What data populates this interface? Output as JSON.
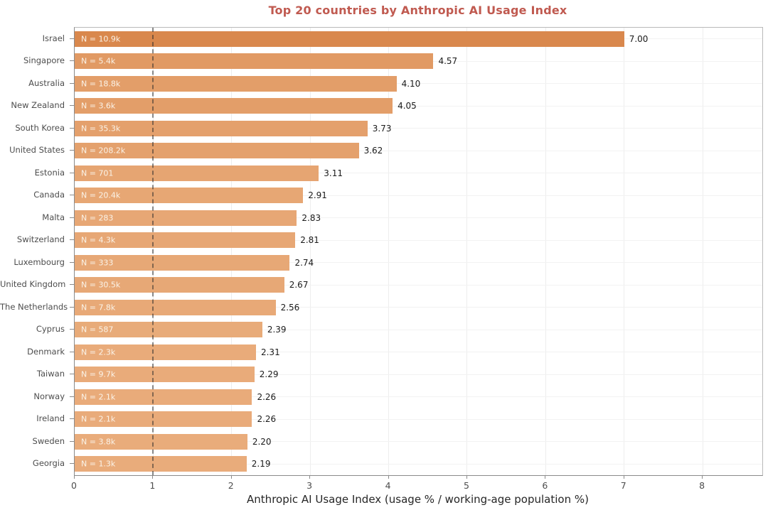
{
  "chart_data": {
    "type": "bar",
    "orientation": "horizontal",
    "title": "Top 20 countries by Anthropic AI Usage Index",
    "xlabel": "Anthropic AI Usage Index (usage % / working-age population %)",
    "categories": [
      "Israel",
      "Singapore",
      "Australia",
      "New Zealand",
      "South Korea",
      "United States",
      "Estonia",
      "Canada",
      "Malta",
      "Switzerland",
      "Luxembourg",
      "United Kingdom",
      "The Netherlands",
      "Cyprus",
      "Denmark",
      "Taiwan",
      "Norway",
      "Ireland",
      "Sweden",
      "Georgia"
    ],
    "values": [
      7.0,
      4.57,
      4.1,
      4.05,
      3.73,
      3.62,
      3.11,
      2.91,
      2.83,
      2.81,
      2.74,
      2.67,
      2.56,
      2.39,
      2.31,
      2.29,
      2.26,
      2.26,
      2.2,
      2.19
    ],
    "value_labels": [
      "7.00",
      "4.57",
      "4.10",
      "4.05",
      "3.73",
      "3.62",
      "3.11",
      "2.91",
      "2.83",
      "2.81",
      "2.74",
      "2.67",
      "2.56",
      "2.39",
      "2.31",
      "2.29",
      "2.26",
      "2.26",
      "2.20",
      "2.19"
    ],
    "bar_labels": [
      "N = 10.9k",
      "N = 5.4k",
      "N = 18.8k",
      "N = 3.6k",
      "N = 35.3k",
      "N = 208.2k",
      "N = 701",
      "N = 20.4k",
      "N = 283",
      "N = 4.3k",
      "N = 333",
      "N = 30.5k",
      "N = 7.8k",
      "N = 587",
      "N = 2.3k",
      "N = 9.7k",
      "N = 2.1k",
      "N = 2.1k",
      "N = 3.8k",
      "N = 1.3k"
    ],
    "x_ticks": [
      0,
      1,
      2,
      3,
      4,
      5,
      6,
      7,
      8
    ],
    "xlim": [
      0,
      8.76
    ],
    "reference_line_x": 1,
    "grid": true,
    "legend": null,
    "colors": {
      "title": "#c05a50",
      "bar_high": "#d9884d",
      "bar_low": "#e9ac7b",
      "bar_label": "#faf3e8",
      "value_label": "#1a1a1a",
      "axis_label": "#262626",
      "tick_label": "#4d4d4d"
    }
  }
}
